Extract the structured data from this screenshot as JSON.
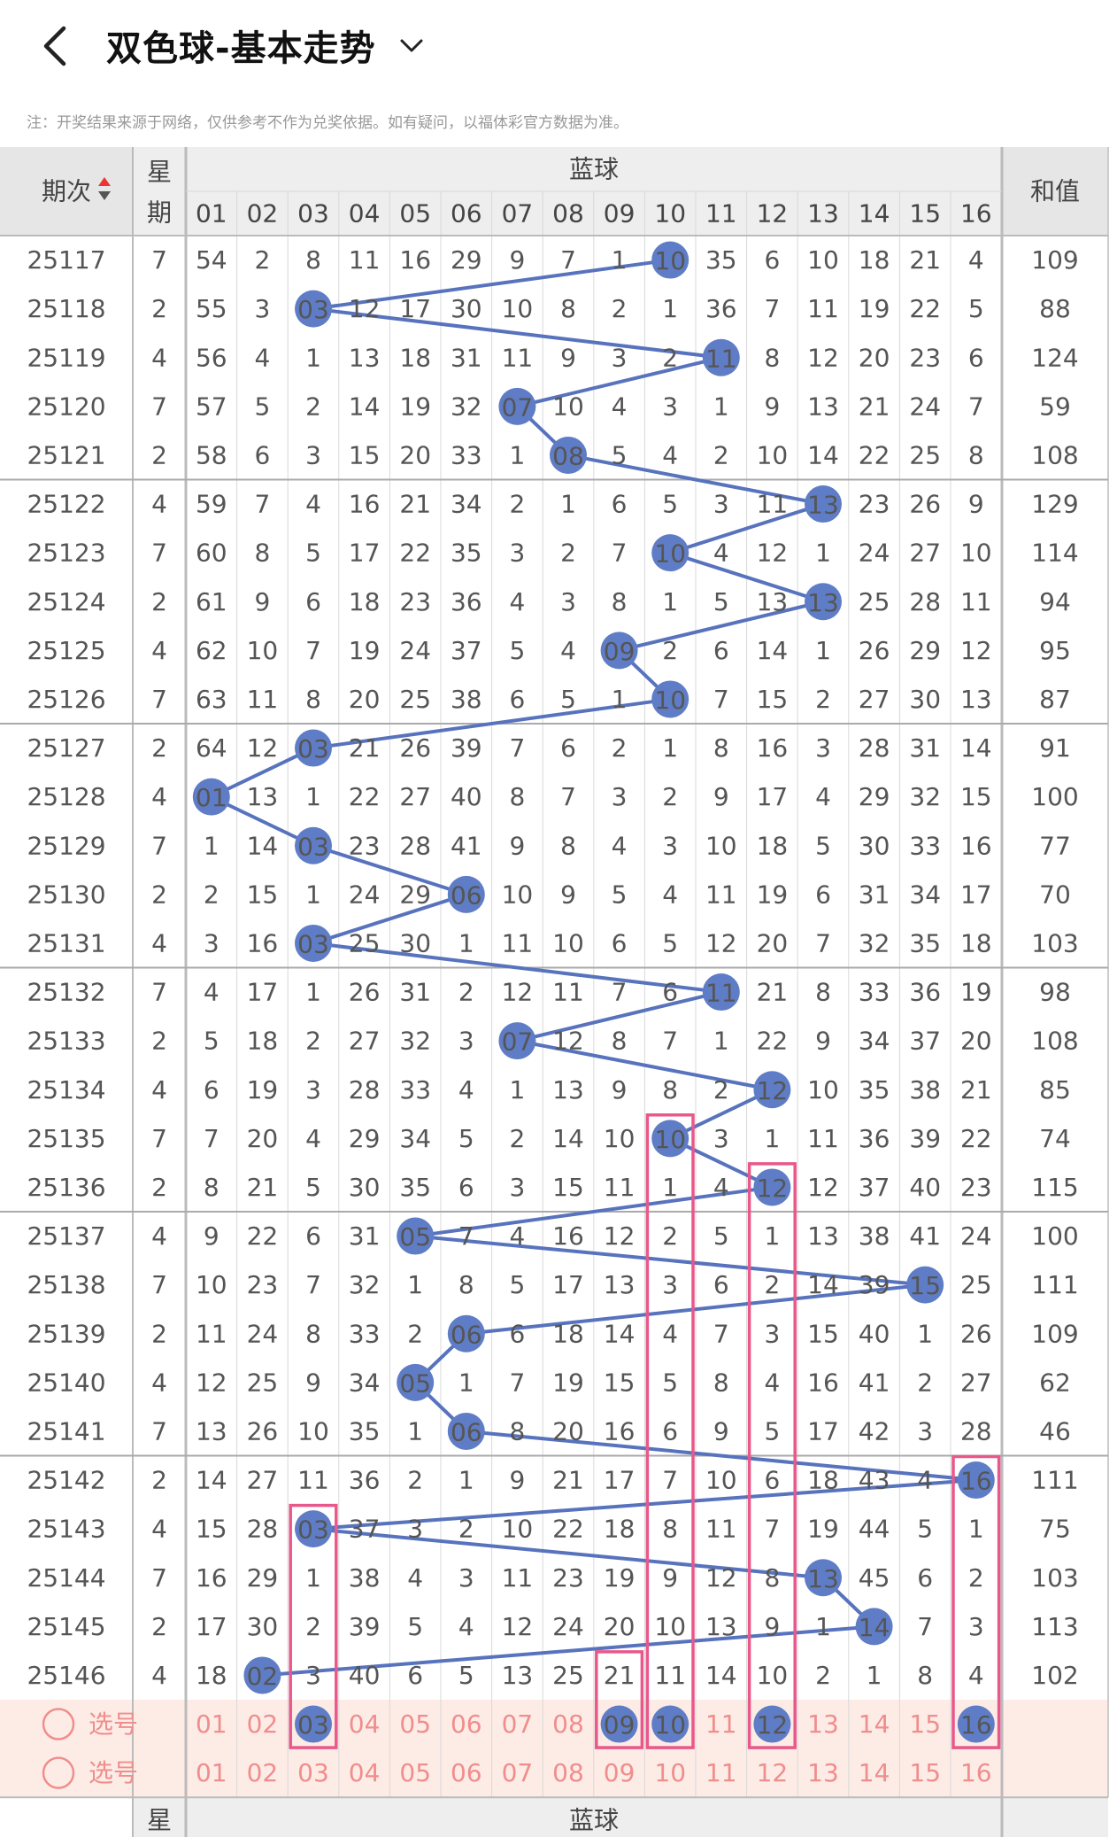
{
  "header": {
    "title": "双色球-基本走势",
    "back_icon": "chevron-left-icon",
    "dropdown_icon": "chevron-down-icon"
  },
  "notice": "注：开奖结果来源于网络，仅供参考不作为兑奖依据。如有疑问，以福体彩官方数据为准。",
  "table": {
    "col_period": "期次",
    "col_week_top": "星",
    "col_week_bottom": "期",
    "col_blue": "蓝球",
    "col_sum": "和值",
    "numbers": [
      "01",
      "02",
      "03",
      "04",
      "05",
      "06",
      "07",
      "08",
      "09",
      "10",
      "11",
      "12",
      "13",
      "14",
      "15",
      "16"
    ],
    "rows": [
      {
        "p": "25117",
        "w": "7",
        "b": 10,
        "s": "109",
        "v": [
          54,
          2,
          8,
          11,
          16,
          29,
          9,
          7,
          1,
          10,
          35,
          6,
          10,
          18,
          21,
          4
        ]
      },
      {
        "p": "25118",
        "w": "2",
        "b": 3,
        "s": "88",
        "v": [
          55,
          3,
          3,
          12,
          17,
          30,
          10,
          8,
          2,
          1,
          36,
          7,
          11,
          19,
          22,
          5
        ]
      },
      {
        "p": "25119",
        "w": "4",
        "b": 11,
        "s": "124",
        "v": [
          56,
          4,
          1,
          13,
          18,
          31,
          11,
          9,
          3,
          2,
          11,
          8,
          12,
          20,
          23,
          6
        ]
      },
      {
        "p": "25120",
        "w": "7",
        "b": 7,
        "s": "59",
        "v": [
          57,
          5,
          2,
          14,
          19,
          32,
          7,
          10,
          4,
          3,
          1,
          9,
          13,
          21,
          24,
          7
        ]
      },
      {
        "p": "25121",
        "w": "2",
        "b": 8,
        "s": "108",
        "v": [
          58,
          6,
          3,
          15,
          20,
          33,
          1,
          8,
          5,
          4,
          2,
          10,
          14,
          22,
          25,
          8
        ]
      },
      {
        "p": "25122",
        "w": "4",
        "b": 13,
        "s": "129",
        "v": [
          59,
          7,
          4,
          16,
          21,
          34,
          2,
          1,
          6,
          5,
          3,
          11,
          13,
          23,
          26,
          9
        ]
      },
      {
        "p": "25123",
        "w": "7",
        "b": 10,
        "s": "114",
        "v": [
          60,
          8,
          5,
          17,
          22,
          35,
          3,
          2,
          7,
          10,
          4,
          12,
          1,
          24,
          27,
          10
        ]
      },
      {
        "p": "25124",
        "w": "2",
        "b": 13,
        "s": "94",
        "v": [
          61,
          9,
          6,
          18,
          23,
          36,
          4,
          3,
          8,
          1,
          5,
          13,
          13,
          25,
          28,
          11
        ]
      },
      {
        "p": "25125",
        "w": "4",
        "b": 9,
        "s": "95",
        "v": [
          62,
          10,
          7,
          19,
          24,
          37,
          5,
          4,
          9,
          2,
          6,
          14,
          1,
          26,
          29,
          12
        ]
      },
      {
        "p": "25126",
        "w": "7",
        "b": 10,
        "s": "87",
        "v": [
          63,
          11,
          8,
          20,
          25,
          38,
          6,
          5,
          1,
          10,
          7,
          15,
          2,
          27,
          30,
          13
        ]
      },
      {
        "p": "25127",
        "w": "2",
        "b": 3,
        "s": "91",
        "v": [
          64,
          12,
          3,
          21,
          26,
          39,
          7,
          6,
          2,
          1,
          8,
          16,
          3,
          28,
          31,
          14
        ]
      },
      {
        "p": "25128",
        "w": "4",
        "b": 1,
        "s": "100",
        "v": [
          1,
          13,
          1,
          22,
          27,
          40,
          8,
          7,
          3,
          2,
          9,
          17,
          4,
          29,
          32,
          15
        ]
      },
      {
        "p": "25129",
        "w": "7",
        "b": 3,
        "s": "77",
        "v": [
          1,
          14,
          3,
          23,
          28,
          41,
          9,
          8,
          4,
          3,
          10,
          18,
          5,
          30,
          33,
          16
        ]
      },
      {
        "p": "25130",
        "w": "2",
        "b": 6,
        "s": "70",
        "v": [
          2,
          15,
          1,
          24,
          29,
          6,
          10,
          9,
          5,
          4,
          11,
          19,
          6,
          31,
          34,
          17
        ]
      },
      {
        "p": "25131",
        "w": "4",
        "b": 3,
        "s": "103",
        "v": [
          3,
          16,
          3,
          25,
          30,
          1,
          11,
          10,
          6,
          5,
          12,
          20,
          7,
          32,
          35,
          18
        ]
      },
      {
        "p": "25132",
        "w": "7",
        "b": 11,
        "s": "98",
        "v": [
          4,
          17,
          1,
          26,
          31,
          2,
          12,
          11,
          7,
          6,
          11,
          21,
          8,
          33,
          36,
          19
        ]
      },
      {
        "p": "25133",
        "w": "2",
        "b": 7,
        "s": "108",
        "v": [
          5,
          18,
          2,
          27,
          32,
          3,
          7,
          12,
          8,
          7,
          1,
          22,
          9,
          34,
          37,
          20
        ]
      },
      {
        "p": "25134",
        "w": "4",
        "b": 12,
        "s": "85",
        "v": [
          6,
          19,
          3,
          28,
          33,
          4,
          1,
          13,
          9,
          8,
          2,
          12,
          10,
          35,
          38,
          21
        ]
      },
      {
        "p": "25135",
        "w": "7",
        "b": 10,
        "s": "74",
        "v": [
          7,
          20,
          4,
          29,
          34,
          5,
          2,
          14,
          10,
          10,
          3,
          1,
          11,
          36,
          39,
          22
        ]
      },
      {
        "p": "25136",
        "w": "2",
        "b": 12,
        "s": "115",
        "v": [
          8,
          21,
          5,
          30,
          35,
          6,
          3,
          15,
          11,
          1,
          4,
          12,
          12,
          37,
          40,
          23
        ]
      },
      {
        "p": "25137",
        "w": "4",
        "b": 5,
        "s": "100",
        "v": [
          9,
          22,
          6,
          31,
          5,
          7,
          4,
          16,
          12,
          2,
          5,
          1,
          13,
          38,
          41,
          24
        ]
      },
      {
        "p": "25138",
        "w": "7",
        "b": 15,
        "s": "111",
        "v": [
          10,
          23,
          7,
          32,
          1,
          8,
          5,
          17,
          13,
          3,
          6,
          2,
          14,
          39,
          15,
          25
        ]
      },
      {
        "p": "25139",
        "w": "2",
        "b": 6,
        "s": "109",
        "v": [
          11,
          24,
          8,
          33,
          2,
          6,
          6,
          18,
          14,
          4,
          7,
          3,
          15,
          40,
          1,
          26
        ]
      },
      {
        "p": "25140",
        "w": "4",
        "b": 5,
        "s": "62",
        "v": [
          12,
          25,
          9,
          34,
          5,
          1,
          7,
          19,
          15,
          5,
          8,
          4,
          16,
          41,
          2,
          27
        ]
      },
      {
        "p": "25141",
        "w": "7",
        "b": 6,
        "s": "46",
        "v": [
          13,
          26,
          10,
          35,
          1,
          6,
          8,
          20,
          16,
          6,
          9,
          5,
          17,
          42,
          3,
          28
        ]
      },
      {
        "p": "25142",
        "w": "2",
        "b": 16,
        "s": "111",
        "v": [
          14,
          27,
          11,
          36,
          2,
          1,
          9,
          21,
          17,
          7,
          10,
          6,
          18,
          43,
          4,
          16
        ]
      },
      {
        "p": "25143",
        "w": "4",
        "b": 3,
        "s": "75",
        "v": [
          15,
          28,
          3,
          37,
          3,
          2,
          10,
          22,
          18,
          8,
          11,
          7,
          19,
          44,
          5,
          1
        ]
      },
      {
        "p": "25144",
        "w": "7",
        "b": 13,
        "s": "103",
        "v": [
          16,
          29,
          1,
          38,
          4,
          3,
          11,
          23,
          19,
          9,
          12,
          8,
          13,
          45,
          6,
          2
        ]
      },
      {
        "p": "25145",
        "w": "2",
        "b": 14,
        "s": "113",
        "v": [
          17,
          30,
          2,
          39,
          5,
          4,
          12,
          24,
          20,
          10,
          13,
          9,
          1,
          14,
          7,
          3
        ]
      },
      {
        "p": "25146",
        "w": "4",
        "b": 2,
        "s": "102",
        "v": [
          18,
          2,
          3,
          40,
          6,
          5,
          13,
          25,
          21,
          11,
          14,
          10,
          2,
          1,
          8,
          4
        ]
      }
    ],
    "select_label": "选号",
    "selected_row1": [
      3,
      9,
      10,
      12,
      16
    ],
    "highlight_boxes": [
      {
        "col": 3,
        "from": "25143",
        "to": "select-row-1"
      },
      {
        "col": 9,
        "from": "25146",
        "to": "select-row-1"
      },
      {
        "col": 10,
        "from": "25135",
        "to": "select-row-1"
      },
      {
        "col": 12,
        "from": "25136",
        "to": "select-row-1"
      },
      {
        "col": 16,
        "from": "25142",
        "to": "select-row-1"
      }
    ]
  },
  "colors": {
    "ball": "#5f7dc6",
    "line": "#5873bd",
    "highlight": "#e8588a",
    "select_bg": "#fdece6",
    "select_text": "#f08d8d",
    "header_bg": "#eeeeee",
    "grid": "#d8d8d8"
  }
}
